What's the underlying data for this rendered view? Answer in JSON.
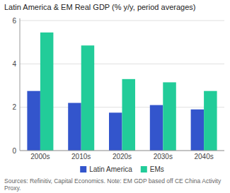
{
  "chart_data": {
    "type": "bar",
    "title": "Latin America & EM Real GDP (% y/y, period averages)",
    "categories": [
      "2000s",
      "2010s",
      "2020s",
      "2030s",
      "2040s"
    ],
    "series": [
      {
        "name": "Latin America",
        "color": "#3355cc",
        "values": [
          2.75,
          2.2,
          1.75,
          2.1,
          1.9
        ]
      },
      {
        "name": "EMs",
        "color": "#22cc99",
        "values": [
          5.45,
          4.85,
          3.3,
          3.15,
          2.75
        ]
      }
    ],
    "ylim": [
      0,
      6.1
    ],
    "yticks": [
      0,
      2,
      4,
      6
    ],
    "grid": true,
    "legend": "bottom",
    "annotations": [
      "Sources: Refinitiv, Capital Economics. Note: EM GDP based off CE China Activity Proxy."
    ]
  }
}
